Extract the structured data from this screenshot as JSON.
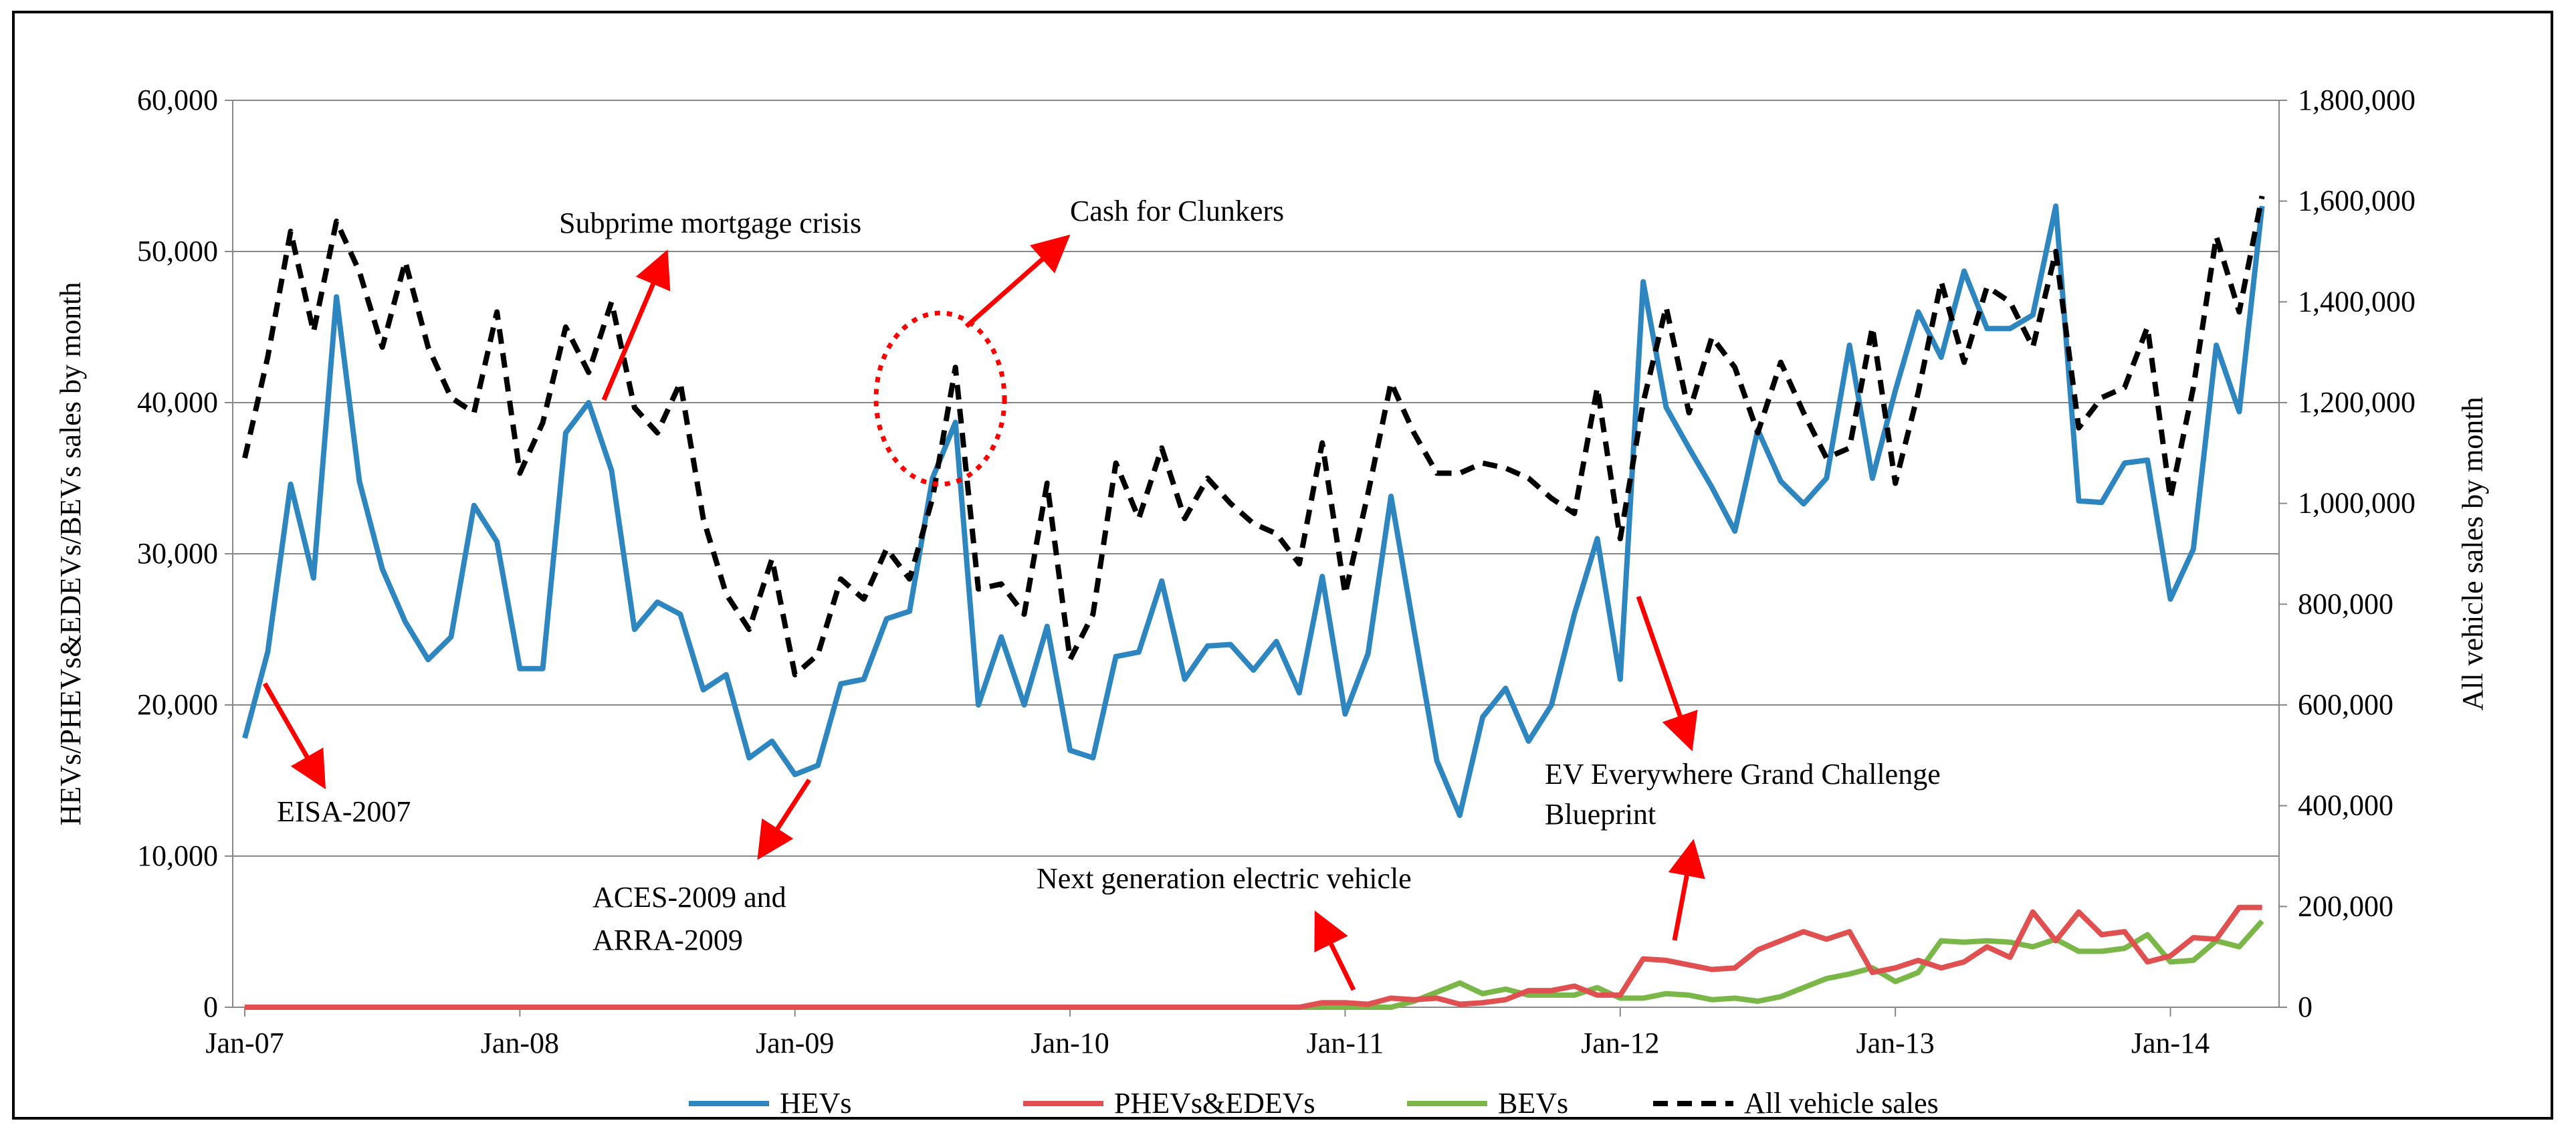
{
  "chart_data": {
    "type": "line",
    "x_labels": [
      "Jan-07",
      "Jan-08",
      "Jan-09",
      "Jan-10",
      "Jan-11",
      "Jan-12",
      "Jan-13",
      "Jan-14"
    ],
    "left_axis": {
      "title": "HEVs/PHEVs&EDEVs/BEVs sales by month",
      "ylim": [
        0,
        60000
      ],
      "ticks": [
        "0",
        "10,000",
        "20,000",
        "30,000",
        "40,000",
        "50,000",
        "60,000"
      ]
    },
    "right_axis": {
      "title": "All vehicle sales by month",
      "ylim": [
        0,
        1800000
      ],
      "ticks": [
        "0",
        "200,000",
        "400,000",
        "600,000",
        "800,000",
        "1,000,000",
        "1,200,000",
        "1,400,000",
        "1,600,000",
        "1,800,000"
      ]
    },
    "series": [
      {
        "name": "HEVs",
        "axis": "left",
        "color": "#2e86c1",
        "style": "solid",
        "values": [
          17800,
          23500,
          34600,
          28400,
          47000,
          34800,
          29000,
          25500,
          23000,
          24500,
          33200,
          30800,
          22400,
          22400,
          38000,
          40000,
          35500,
          25000,
          26800,
          26000,
          21000,
          22000,
          16500,
          17600,
          15400,
          16000,
          21400,
          21700,
          25700,
          26200,
          35000,
          38700,
          20000,
          24500,
          20000,
          25200,
          17000,
          16500,
          23200,
          23500,
          28200,
          21700,
          23900,
          24000,
          22300,
          24200,
          20800,
          28500,
          19400,
          23400,
          33800,
          25000,
          16300,
          12700,
          19200,
          21100,
          17600,
          20000,
          26000,
          31000,
          21700,
          48000,
          39700,
          37000,
          34400,
          31500,
          38200,
          34800,
          33300,
          35000,
          43800,
          35000,
          40800,
          46000,
          43000,
          48700,
          44900,
          44900,
          45800,
          53000,
          33500,
          33400,
          36000,
          36200,
          27000,
          30300,
          43800,
          39400,
          53000
        ]
      },
      {
        "name": "PHEVs&EDEVs",
        "axis": "left",
        "color": "#e05050",
        "style": "solid",
        "values": [
          0,
          0,
          0,
          0,
          0,
          0,
          0,
          0,
          0,
          0,
          0,
          0,
          0,
          0,
          0,
          0,
          0,
          0,
          0,
          0,
          0,
          0,
          0,
          0,
          0,
          0,
          0,
          0,
          0,
          0,
          0,
          0,
          0,
          0,
          0,
          0,
          0,
          0,
          0,
          0,
          0,
          0,
          0,
          0,
          0,
          0,
          0,
          300,
          300,
          200,
          600,
          500,
          600,
          200,
          300,
          500,
          1100,
          1100,
          1400,
          800,
          800,
          3200,
          3100,
          2800,
          2500,
          2600,
          3800,
          4400,
          5000,
          4500,
          5000,
          2300,
          2600,
          3100,
          2600,
          3000,
          4000,
          3300,
          6300,
          4400,
          6300,
          4800,
          5000,
          3000,
          3400,
          4600,
          4500,
          6600,
          6600
        ]
      },
      {
        "name": "BEVs",
        "axis": "left",
        "color": "#7ab648",
        "style": "solid",
        "values": [
          0,
          0,
          0,
          0,
          0,
          0,
          0,
          0,
          0,
          0,
          0,
          0,
          0,
          0,
          0,
          0,
          0,
          0,
          0,
          0,
          0,
          0,
          0,
          0,
          0,
          0,
          0,
          0,
          0,
          0,
          0,
          0,
          0,
          0,
          0,
          0,
          0,
          0,
          0,
          0,
          0,
          0,
          0,
          0,
          0,
          0,
          0,
          0,
          0,
          0,
          0,
          400,
          1000,
          1600,
          900,
          1200,
          800,
          800,
          800,
          1300,
          600,
          600,
          900,
          800,
          500,
          600,
          400,
          700,
          1300,
          1900,
          2200,
          2600,
          1700,
          2300,
          4400,
          4300,
          4400,
          4300,
          4000,
          4500,
          3700,
          3700,
          3900,
          4800,
          3000,
          3100,
          4400,
          4000,
          5700
        ]
      },
      {
        "name": "All vehicle sales",
        "axis": "right",
        "color": "#000000",
        "style": "dashed",
        "values": [
          1090000,
          1290000,
          1540000,
          1340000,
          1560000,
          1460000,
          1310000,
          1480000,
          1310000,
          1210000,
          1180000,
          1380000,
          1060000,
          1160000,
          1350000,
          1260000,
          1400000,
          1190000,
          1140000,
          1240000,
          970000,
          820000,
          750000,
          890000,
          660000,
          700000,
          850000,
          810000,
          910000,
          850000,
          1010000,
          1270000,
          830000,
          840000,
          780000,
          1040000,
          690000,
          780000,
          1080000,
          970000,
          1110000,
          970000,
          1050000,
          1000000,
          960000,
          940000,
          880000,
          1120000,
          820000,
          1020000,
          1240000,
          1140000,
          1060000,
          1060000,
          1080000,
          1070000,
          1050000,
          1010000,
          980000,
          1230000,
          930000,
          1200000,
          1390000,
          1180000,
          1330000,
          1270000,
          1140000,
          1280000,
          1180000,
          1090000,
          1110000,
          1350000,
          1040000,
          1220000,
          1440000,
          1280000,
          1430000,
          1400000,
          1310000,
          1500000,
          1150000,
          1210000,
          1230000,
          1350000,
          1010000,
          1230000,
          1530000,
          1380000,
          1610000
        ]
      }
    ],
    "annotations": [
      {
        "text": "Subprime mortgage crisis"
      },
      {
        "text": "Cash for Clunkers"
      },
      {
        "text": "EISA-2007"
      },
      {
        "text": "ACES-2009 and"
      },
      {
        "text": "ARRA-2009"
      },
      {
        "text": "Next generation electric vehicle"
      },
      {
        "text": "EV Everywhere Grand Challenge"
      },
      {
        "text": "Blueprint"
      }
    ],
    "legend": [
      "HEVs",
      "PHEVs&EDEVs",
      "BEVs",
      "All vehicle sales"
    ],
    "legend_position": "bottom",
    "grid": true,
    "annotation_color": "#ff0000"
  }
}
